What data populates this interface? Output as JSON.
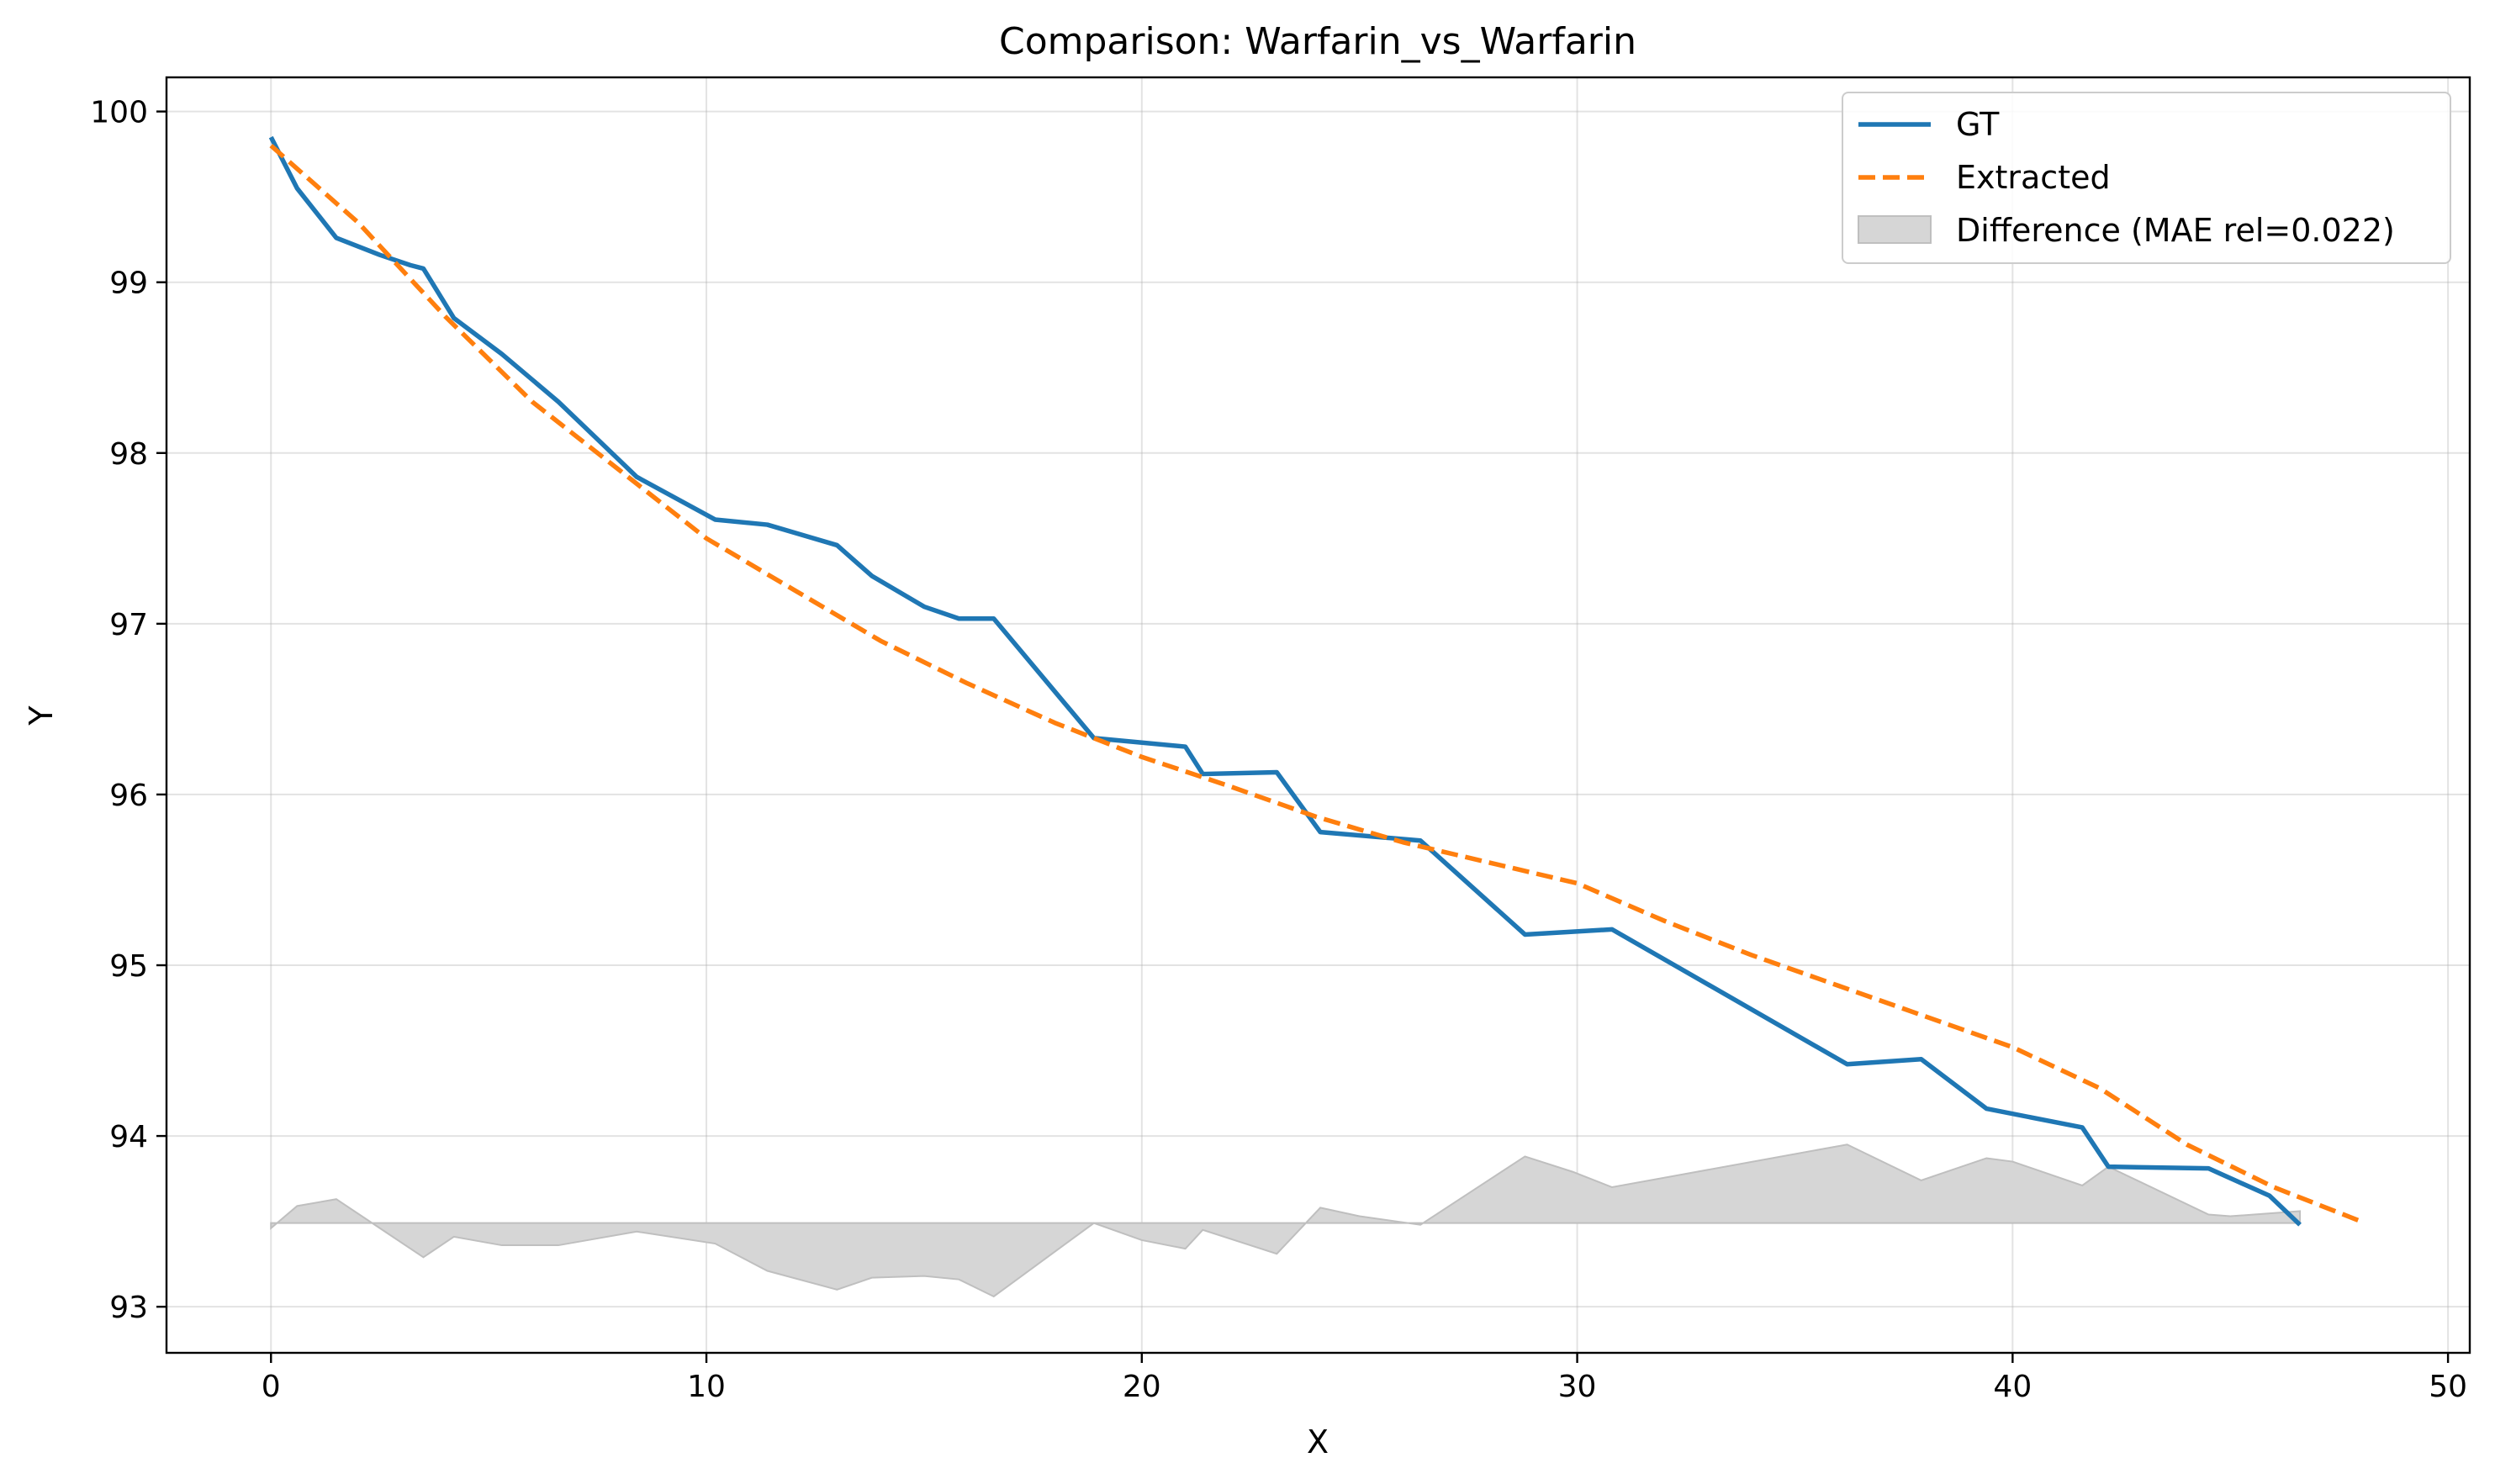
{
  "chart_data": {
    "type": "line",
    "title": "Comparison: Warfarin_vs_Warfarin",
    "xlabel": "X",
    "ylabel": "Y",
    "xlim": [
      -2.4,
      50.5
    ],
    "ylim": [
      92.73,
      100.2
    ],
    "xticks": [
      0,
      10,
      20,
      30,
      40,
      50
    ],
    "yticks": [
      93,
      94,
      95,
      96,
      97,
      98,
      99,
      100
    ],
    "grid": true,
    "legend_position": "top-right",
    "series": [
      {
        "name": "GT",
        "style": "solid",
        "color": "#1f77b4",
        "x": [
          0,
          0.6,
          1.5,
          2.5,
          3.2,
          3.5,
          4.2,
          5.3,
          6.6,
          8.4,
          10.2,
          11.4,
          13.0,
          13.8,
          15.0,
          15.8,
          16.6,
          18.9,
          21.0,
          21.4,
          23.1,
          24.1,
          26.4,
          28.8,
          30.8,
          36.2,
          37.9,
          39.4,
          41.6,
          42.2,
          44.5,
          45.9,
          46.6
        ],
        "y": [
          99.85,
          99.55,
          99.26,
          99.16,
          99.1,
          99.08,
          98.79,
          98.58,
          98.3,
          97.86,
          97.61,
          97.58,
          97.46,
          97.28,
          97.1,
          97.03,
          97.03,
          96.33,
          96.28,
          96.12,
          96.13,
          95.78,
          95.73,
          95.18,
          95.21,
          94.42,
          94.45,
          94.16,
          94.05,
          93.82,
          93.81,
          93.65,
          93.48
        ]
      },
      {
        "name": "Extracted",
        "style": "dashed",
        "color": "#ff7f0e",
        "x": [
          0,
          2,
          4,
          6,
          8,
          10,
          12,
          14,
          16,
          18,
          20,
          22,
          24,
          26,
          28,
          30,
          32,
          34,
          36,
          38,
          40,
          42,
          44,
          46,
          48
        ],
        "y": [
          99.8,
          99.35,
          98.8,
          98.3,
          97.9,
          97.5,
          97.2,
          96.9,
          96.65,
          96.42,
          96.22,
          96.05,
          95.87,
          95.72,
          95.6,
          95.48,
          95.26,
          95.06,
          94.88,
          94.7,
          94.52,
          94.28,
          93.95,
          93.7,
          93.5
        ]
      }
    ],
    "difference_area": {
      "name": "Difference (MAE rel=0.022)",
      "color": "#d6d6d6",
      "edge_color": "#bfbfbf",
      "baseline": 93.49,
      "x": [
        0,
        0.6,
        1.5,
        2.5,
        3.5,
        4.2,
        5.3,
        6.6,
        8.4,
        10.2,
        11.4,
        13.0,
        13.8,
        15.0,
        15.8,
        16.6,
        18.9,
        20.0,
        21.0,
        21.4,
        23.1,
        24.1,
        25.0,
        26.4,
        28.8,
        29.9,
        30.8,
        36.2,
        37.9,
        39.4,
        40.0,
        41.6,
        42.2,
        44.5,
        45.0,
        46.6
      ],
      "y": [
        93.46,
        93.59,
        93.63,
        93.46,
        93.29,
        93.41,
        93.36,
        93.36,
        93.44,
        93.37,
        93.21,
        93.1,
        93.17,
        93.18,
        93.16,
        93.06,
        93.49,
        93.39,
        93.34,
        93.45,
        93.31,
        93.58,
        93.53,
        93.48,
        93.88,
        93.79,
        93.7,
        93.95,
        93.74,
        93.87,
        93.85,
        93.71,
        93.82,
        93.54,
        93.53,
        93.56
      ]
    }
  }
}
